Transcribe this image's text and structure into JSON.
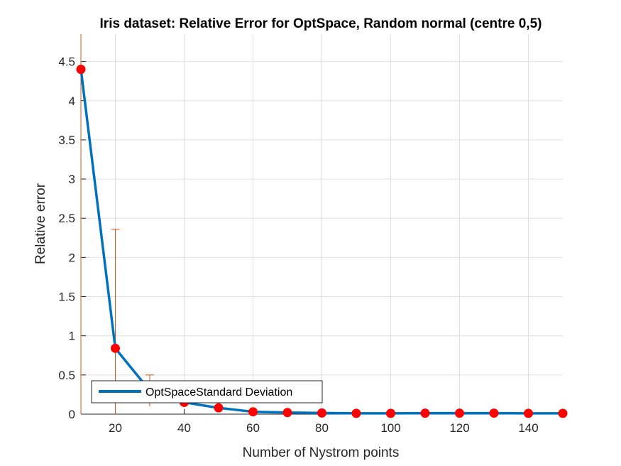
{
  "chart_data": {
    "type": "line",
    "title": "Iris dataset: Relative Error for OptSpace, Random normal (centre 0,5)",
    "xlabel": "Number of Nystrom points",
    "ylabel": "Relative error",
    "xlim": [
      10,
      150
    ],
    "ylim": [
      0,
      4.85
    ],
    "x_ticks": [
      20,
      40,
      60,
      80,
      100,
      120,
      140
    ],
    "y_ticks": [
      0,
      0.5,
      1,
      1.5,
      2,
      2.5,
      3,
      3.5,
      4,
      4.5
    ],
    "grid": true,
    "legend": {
      "location": "bottom-left",
      "entries": [
        "OptSpaceStandard Deviation"
      ]
    },
    "series": [
      {
        "name": "OptSpace",
        "color": "#0072BD",
        "marker_color": "#FF0000",
        "x": [
          10,
          20,
          30,
          40,
          50,
          60,
          70,
          80,
          90,
          100,
          110,
          120,
          130,
          140,
          150
        ],
        "values": [
          4.4,
          0.84,
          0.3,
          0.15,
          0.08,
          0.03,
          0.02,
          0.015,
          0.01,
          0.01,
          0.012,
          0.012,
          0.013,
          0.01,
          0.01
        ],
        "error": [
          4.4,
          1.52,
          0.2,
          0.05,
          0.02,
          0.01,
          0.005,
          0.004,
          0.003,
          0.003,
          0.003,
          0.003,
          0.003,
          0.003,
          0.003
        ],
        "error_color": "#D95319"
      }
    ]
  }
}
